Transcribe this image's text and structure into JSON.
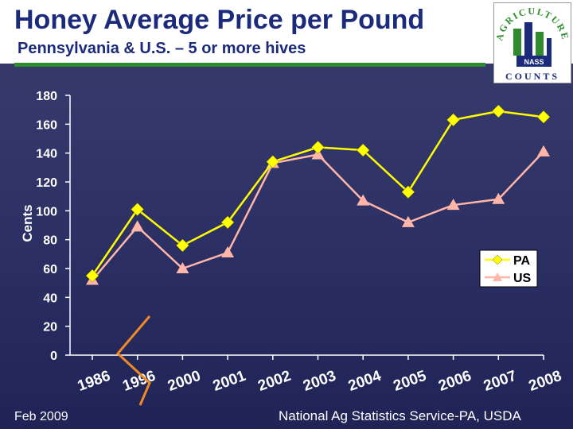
{
  "header": {
    "title": "Honey Average Price per Pound",
    "subtitle": "Pennsylvania & U.S. – 5 or more hives"
  },
  "logo": {
    "arc_text": "AGRICULTURE",
    "bottom_text": "COUNTS",
    "badge": "NASS"
  },
  "footer": {
    "left": "Feb 2009",
    "right": "National Ag Statistics Service-PA, USDA"
  },
  "colors": {
    "pa": "#ffff00",
    "us": "#ffb6a8",
    "axis": "#ffffff",
    "accent_rule": "#2e8b2e",
    "break_mark": "#f08a24"
  },
  "chart_data": {
    "type": "line",
    "ylabel": "Cents",
    "xlabel": "",
    "ylim": [
      0,
      180
    ],
    "yticks": [
      0,
      20,
      40,
      60,
      80,
      100,
      120,
      140,
      160,
      180
    ],
    "x_tick_labels": [
      "1986",
      "1996",
      "2000",
      "2001",
      "2002",
      "2003",
      "2004",
      "2005",
      "2006",
      "2007",
      "2008"
    ],
    "grid": false,
    "legend": "right",
    "series": [
      {
        "name": "PA",
        "marker": "diamond",
        "values": [
          55,
          101,
          76,
          92,
          134,
          144,
          142,
          113,
          163,
          169,
          165
        ]
      },
      {
        "name": "US",
        "marker": "triangle",
        "values": [
          52,
          89,
          60,
          71,
          133,
          139,
          107,
          92,
          104,
          108,
          141
        ]
      }
    ]
  }
}
